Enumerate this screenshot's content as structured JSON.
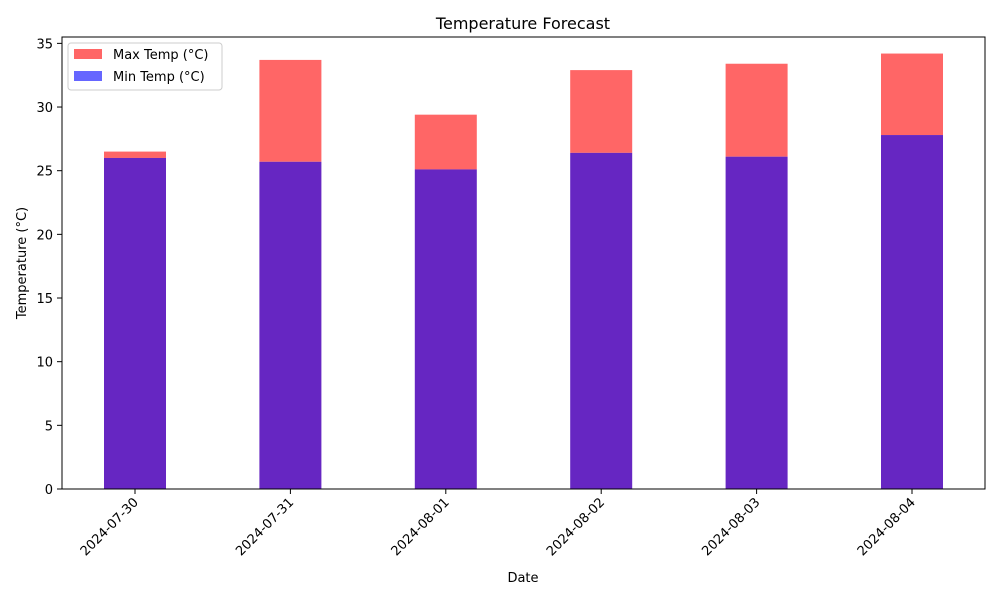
{
  "chart_data": {
    "type": "bar",
    "title": "Temperature Forecast",
    "xlabel": "Date",
    "ylabel": "Temperature (°C)",
    "categories": [
      "2024-07-30",
      "2024-07-31",
      "2024-08-01",
      "2024-08-02",
      "2024-08-03",
      "2024-08-04"
    ],
    "series": [
      {
        "name": "Max Temp (°C)",
        "color": "#ff6666",
        "values": [
          26.5,
          33.7,
          29.4,
          32.9,
          33.4,
          34.2
        ]
      },
      {
        "name": "Min Temp (°C)",
        "color": "#6666ff",
        "values": [
          26.0,
          25.7,
          25.1,
          26.4,
          26.1,
          27.8
        ]
      }
    ],
    "overlap_color": "#6626c2",
    "ylim": [
      0,
      35.5
    ],
    "yticks": [
      0,
      5,
      10,
      15,
      20,
      25,
      30,
      35
    ],
    "xtick_rotation": 45,
    "grid": false,
    "legend_position": "top-left"
  }
}
